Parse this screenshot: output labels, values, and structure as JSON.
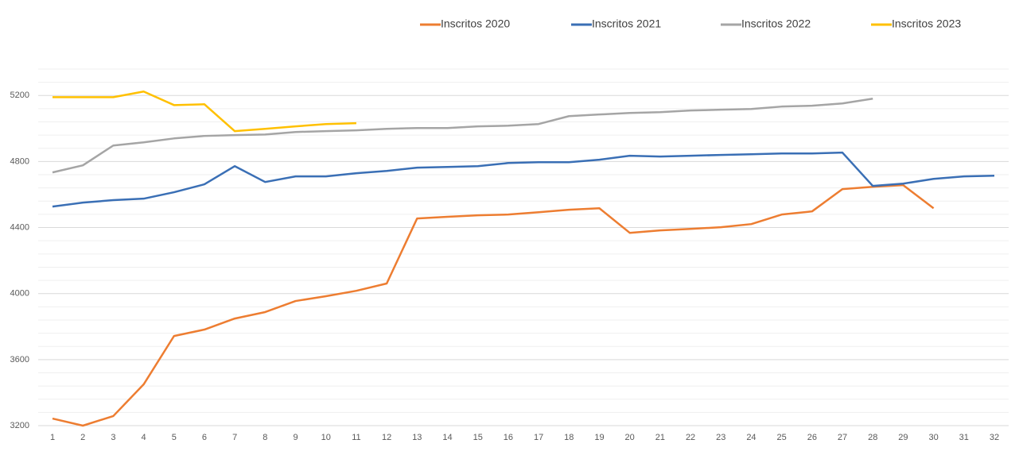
{
  "chart_data": {
    "type": "line",
    "categories": [
      "1",
      "2",
      "3",
      "4",
      "5",
      "6",
      "7",
      "8",
      "9",
      "10",
      "11",
      "12",
      "13",
      "14",
      "15",
      "16",
      "17",
      "18",
      "19",
      "20",
      "21",
      "22",
      "23",
      "24",
      "25",
      "26",
      "27",
      "28",
      "29",
      "30",
      "31",
      "32"
    ],
    "series": [
      {
        "name": "Inscritos 2020",
        "color": "#ED7D31",
        "values": [
          3243,
          3200,
          3258,
          3450,
          3743,
          3782,
          3849,
          3888,
          3955,
          3984,
          4017,
          4061,
          4455,
          4465,
          4474,
          4479,
          4493,
          4508,
          4517,
          4368,
          4383,
          4392,
          4402,
          4421,
          4479,
          4498,
          4633,
          4647,
          4657,
          4517,
          null,
          null
        ]
      },
      {
        "name": "Inscritos 2021",
        "color": "#3A6FB5",
        "values": [
          4527,
          4551,
          4566,
          4575,
          4614,
          4662,
          4772,
          4676,
          4710,
          4710,
          4729,
          4743,
          4763,
          4767,
          4772,
          4791,
          4796,
          4796,
          4811,
          4835,
          4830,
          4835,
          4840,
          4844,
          4849,
          4849,
          4854,
          4652,
          4666,
          4695,
          4710,
          4714
        ]
      },
      {
        "name": "Inscritos 2022",
        "color": "#A5A5A5",
        "values": [
          4734,
          4777,
          4897,
          4916,
          4940,
          4955,
          4960,
          4964,
          4979,
          4984,
          4989,
          4998,
          5003,
          5003,
          5013,
          5017,
          5027,
          5075,
          5085,
          5094,
          5099,
          5109,
          5114,
          5118,
          5133,
          5138,
          5152,
          5181,
          null,
          null,
          null,
          null
        ]
      },
      {
        "name": "Inscritos 2023",
        "color": "#FFC000",
        "values": [
          5190,
          5190,
          5190,
          5224,
          5142,
          5147,
          4984,
          4998,
          5013,
          5027,
          5032,
          null,
          null,
          null,
          null,
          null,
          null,
          null,
          null,
          null,
          null,
          null,
          null,
          null,
          null,
          null,
          null,
          null,
          null,
          null,
          null,
          null
        ]
      }
    ],
    "ylim": [
      3200,
      5360
    ],
    "yticks": [
      3200,
      3600,
      4000,
      4400,
      4800,
      5200
    ],
    "minor_yticks": [
      3280,
      3360,
      3440,
      3520,
      3680,
      3760,
      3840,
      3920,
      4080,
      4160,
      4240,
      4320,
      4480,
      4560,
      4640,
      4720,
      4880,
      4960,
      5040,
      5120,
      5280,
      5360
    ],
    "grid": true,
    "legend": "top"
  }
}
